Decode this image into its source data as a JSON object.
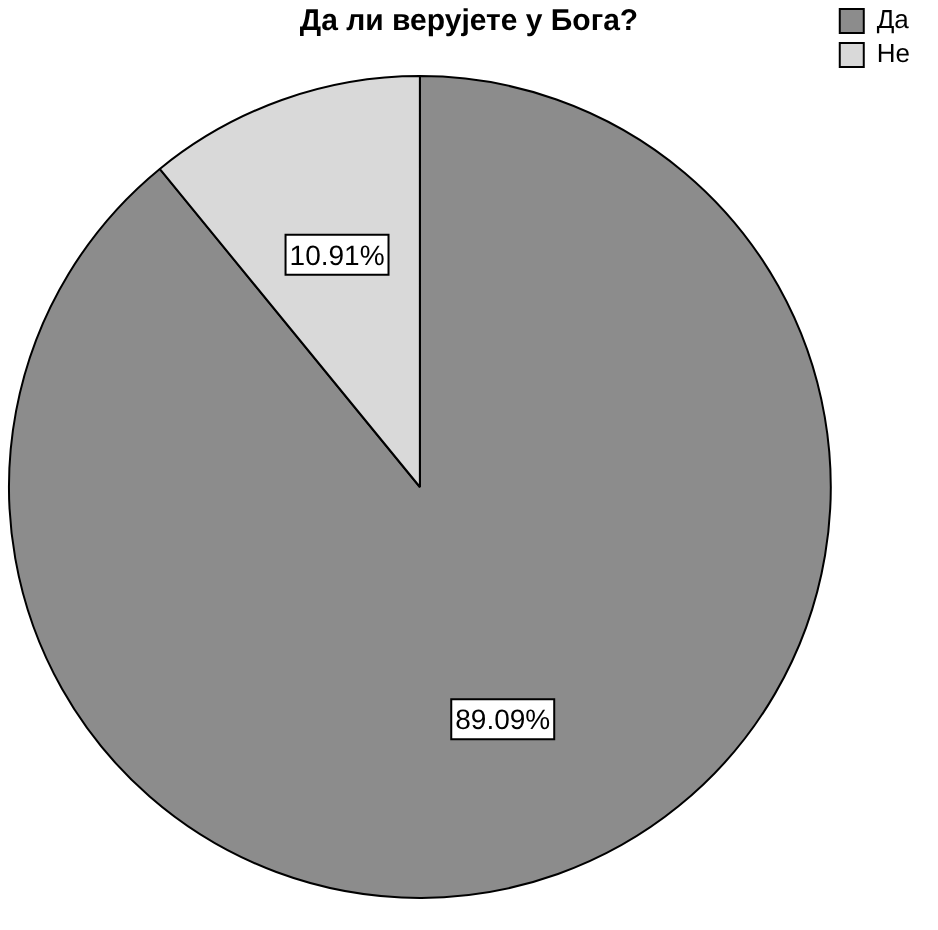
{
  "chart_data": {
    "type": "pie",
    "title": "Да ли верујете у Бога?",
    "categories": [
      "Да",
      "Не"
    ],
    "values": [
      89.09,
      10.91
    ],
    "colors": [
      "#8c8c8c",
      "#d9d9d9"
    ],
    "value_labels": [
      "89.09%",
      "10.91%"
    ],
    "legend": "top right"
  }
}
